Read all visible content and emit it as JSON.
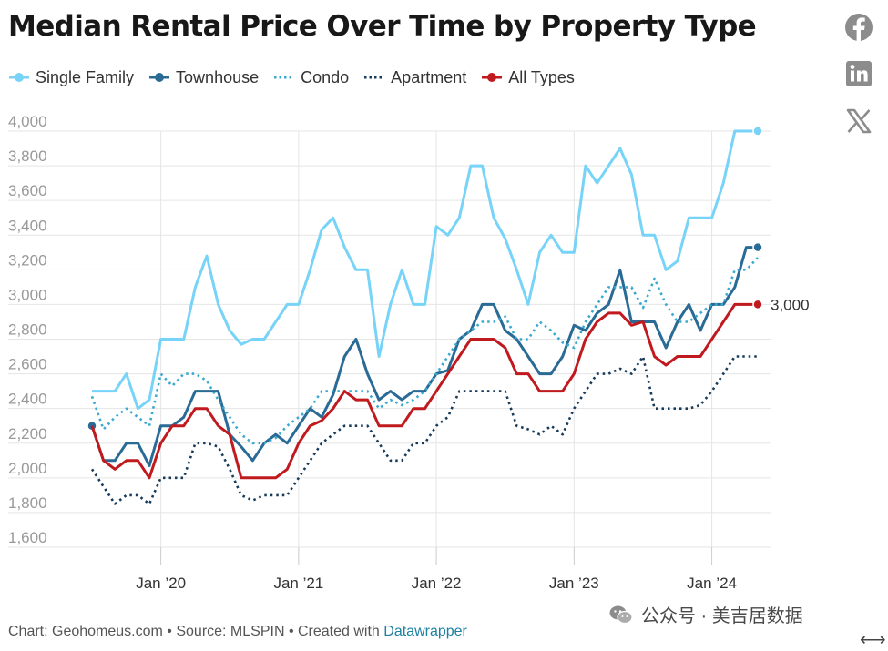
{
  "title": "Median Rental Price Over Time by Property Type",
  "footer": {
    "prefix": "Chart: Geohomeus.com • Source: MLSPIN • Created with ",
    "link": "Datawrapper"
  },
  "watermark": "公众号 · 美吉居数据",
  "expand_glyph": "⟷",
  "social": [
    "facebook-icon",
    "linkedin-icon",
    "x-icon"
  ],
  "colors": {
    "single_family": "#77d3f7",
    "townhouse": "#2a6b95",
    "condo": "#3aa9cf",
    "apartment": "#173a59",
    "all_types": "#c01a1f",
    "grid": "#e5e5e5",
    "axis": "#cccccc"
  },
  "chart_data": {
    "type": "line",
    "title": "Median Rental Price Over Time by Property Type",
    "xlabel": "",
    "ylabel": "",
    "ylim": [
      1600,
      4000
    ],
    "yticks": [
      4000,
      3800,
      3600,
      3400,
      3200,
      3000,
      2800,
      2600,
      2400,
      2200,
      2000,
      1800,
      1600
    ],
    "ytick_labels": [
      "4,000",
      "3,800",
      "3,600",
      "3,400",
      "3,200",
      "3,000",
      "2,800",
      "2,600",
      "2,400",
      "2,200",
      "2,000",
      "1,800",
      "1,600"
    ],
    "x": [
      "2019-07",
      "2019-08",
      "2019-09",
      "2019-10",
      "2019-11",
      "2019-12",
      "2020-01",
      "2020-02",
      "2020-03",
      "2020-04",
      "2020-05",
      "2020-06",
      "2020-07",
      "2020-08",
      "2020-09",
      "2020-10",
      "2020-11",
      "2020-12",
      "2021-01",
      "2021-02",
      "2021-03",
      "2021-04",
      "2021-05",
      "2021-06",
      "2021-07",
      "2021-08",
      "2021-09",
      "2021-10",
      "2021-11",
      "2021-12",
      "2022-01",
      "2022-02",
      "2022-03",
      "2022-04",
      "2022-05",
      "2022-06",
      "2022-07",
      "2022-08",
      "2022-09",
      "2022-10",
      "2022-11",
      "2022-12",
      "2023-01",
      "2023-02",
      "2023-03",
      "2023-04",
      "2023-05",
      "2023-06",
      "2023-07",
      "2023-08",
      "2023-09",
      "2023-10",
      "2023-11",
      "2023-12",
      "2024-01",
      "2024-02",
      "2024-03",
      "2024-04",
      "2024-05"
    ],
    "xticks": [
      {
        "x": "2020-01",
        "label": "Jan ’20"
      },
      {
        "x": "2021-01",
        "label": "Jan ’21"
      },
      {
        "x": "2022-01",
        "label": "Jan ’22"
      },
      {
        "x": "2023-01",
        "label": "Jan ’23"
      },
      {
        "x": "2024-01",
        "label": "Jan ’24"
      }
    ],
    "legend": "top-left",
    "grid": true,
    "series": [
      {
        "name": "Single Family",
        "key": "single_family",
        "style": "solid",
        "end_dot": true,
        "values": [
          2500,
          2500,
          2500,
          2600,
          2400,
          2450,
          2800,
          2800,
          2800,
          3100,
          3280,
          3000,
          2850,
          2770,
          2800,
          2800,
          2900,
          3000,
          3000,
          3200,
          3430,
          3500,
          3330,
          3200,
          3200,
          2700,
          3000,
          3200,
          3000,
          3000,
          3450,
          3400,
          3500,
          3800,
          3800,
          3500,
          3380,
          3200,
          3000,
          3300,
          3400,
          3300,
          3300,
          3800,
          3700,
          3800,
          3900,
          3750,
          3400,
          3400,
          3200,
          3250,
          3500,
          3500,
          3500,
          3700,
          4000,
          4000,
          4000
        ]
      },
      {
        "name": "Townhouse",
        "key": "townhouse",
        "style": "solid",
        "start_dot": true,
        "end_dot": true,
        "values": [
          2300,
          2100,
          2100,
          2200,
          2200,
          2070,
          2300,
          2300,
          2350,
          2500,
          2500,
          2500,
          2250,
          2180,
          2100,
          2200,
          2250,
          2200,
          2300,
          2400,
          2350,
          2480,
          2700,
          2800,
          2600,
          2450,
          2500,
          2450,
          2500,
          2500,
          2600,
          2620,
          2800,
          2850,
          3000,
          3000,
          2850,
          2800,
          2700,
          2600,
          2600,
          2700,
          2880,
          2850,
          2950,
          3000,
          3200,
          2900,
          2900,
          2900,
          2750,
          2900,
          3000,
          2850,
          3000,
          3000,
          3100,
          3330,
          3330
        ]
      },
      {
        "name": "Condo",
        "key": "condo",
        "style": "dotted",
        "values": [
          2470,
          2280,
          2350,
          2400,
          2350,
          2300,
          2600,
          2530,
          2600,
          2600,
          2560,
          2450,
          2350,
          2250,
          2200,
          2200,
          2230,
          2300,
          2350,
          2400,
          2500,
          2500,
          2500,
          2500,
          2500,
          2400,
          2450,
          2420,
          2450,
          2500,
          2600,
          2700,
          2800,
          2850,
          2900,
          2900,
          2930,
          2800,
          2800,
          2900,
          2850,
          2780,
          2750,
          2900,
          3000,
          3100,
          3100,
          3100,
          2980,
          3150,
          3000,
          2900,
          2900,
          2950,
          3000,
          3000,
          3200,
          3200,
          3270
        ]
      },
      {
        "name": "Apartment",
        "key": "apartment",
        "style": "dotted",
        "values": [
          2050,
          1950,
          1850,
          1900,
          1900,
          1850,
          2000,
          2000,
          2000,
          2200,
          2200,
          2180,
          2050,
          1900,
          1870,
          1900,
          1900,
          1900,
          2000,
          2100,
          2200,
          2250,
          2300,
          2300,
          2300,
          2200,
          2100,
          2100,
          2200,
          2200,
          2300,
          2350,
          2500,
          2500,
          2500,
          2500,
          2500,
          2300,
          2280,
          2250,
          2300,
          2250,
          2400,
          2500,
          2600,
          2600,
          2630,
          2600,
          2700,
          2400,
          2400,
          2400,
          2400,
          2420,
          2500,
          2600,
          2700,
          2700,
          2700
        ]
      },
      {
        "name": "All Types",
        "key": "all_types",
        "style": "solid",
        "end_dot": true,
        "end_label": "3,000",
        "values": [
          2300,
          2100,
          2050,
          2100,
          2100,
          2000,
          2200,
          2300,
          2300,
          2400,
          2400,
          2300,
          2250,
          2000,
          2000,
          2000,
          2000,
          2050,
          2200,
          2300,
          2330,
          2400,
          2500,
          2450,
          2450,
          2300,
          2300,
          2300,
          2400,
          2400,
          2500,
          2600,
          2700,
          2800,
          2800,
          2800,
          2750,
          2600,
          2600,
          2500,
          2500,
          2500,
          2600,
          2800,
          2900,
          2950,
          2950,
          2880,
          2900,
          2700,
          2650,
          2700,
          2700,
          2700,
          2800,
          2900,
          3000,
          3000,
          3000
        ]
      }
    ]
  }
}
